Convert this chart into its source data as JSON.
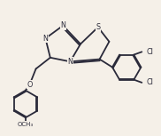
{
  "background_color": "#f5f0e8",
  "line_color": "#2a2a3a",
  "line_width": 1.3,
  "font_size": 5.8,
  "figsize": [
    1.82,
    1.53
  ],
  "dpi": 100,
  "xlim": [
    0,
    10
  ],
  "ylim": [
    0,
    8.5
  ]
}
